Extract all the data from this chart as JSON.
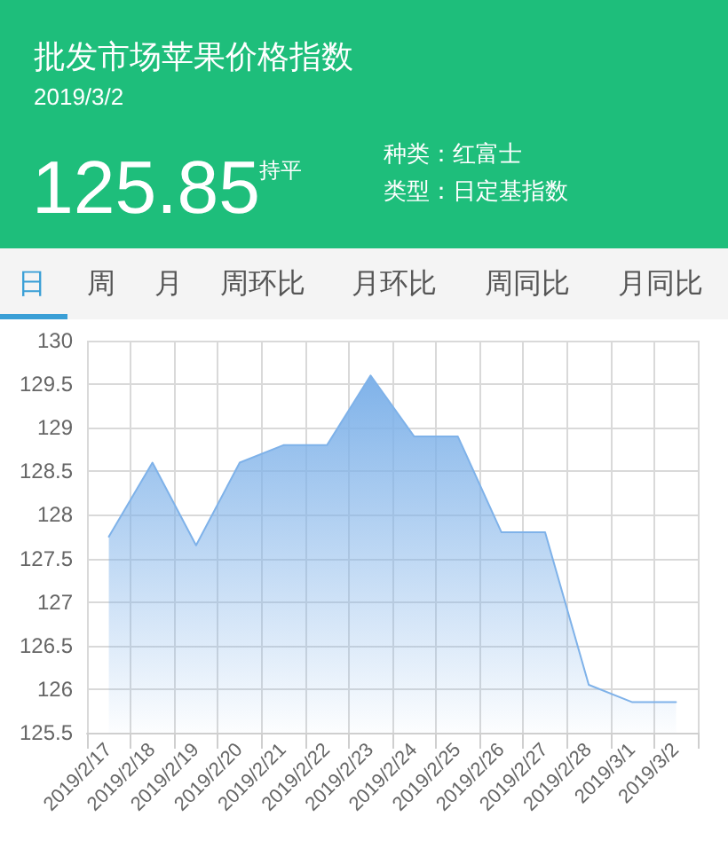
{
  "chart_data": {
    "type": "area",
    "title": "批发市场苹果价格指数",
    "subtitle": "2019/3/2",
    "annotations": [
      "125.85",
      "持平",
      "种类：红富士",
      "类型：日定基指数",
      "日",
      "周",
      "月",
      "周环比",
      "月环比",
      "周同比",
      "月同比"
    ],
    "categories": [
      "2019/2/17",
      "2019/2/18",
      "2019/2/19",
      "2019/2/20",
      "2019/2/21",
      "2019/2/22",
      "2019/2/23",
      "2019/2/24",
      "2019/2/25",
      "2019/2/26",
      "2019/2/27",
      "2019/2/28",
      "2019/3/1",
      "2019/3/2"
    ],
    "series": [
      {
        "color": "#7fb2e9",
        "values": [
          127.75,
          128.6,
          127.65,
          128.6,
          128.8,
          128.8,
          129.6,
          128.9,
          128.9,
          127.8,
          127.8,
          126.05,
          125.85,
          125.85
        ]
      }
    ],
    "ylim": [
      125.5,
      130
    ],
    "yticks": [
      125.5,
      126,
      126.5,
      127,
      127.5,
      128,
      128.5,
      129,
      129.5,
      130
    ],
    "grid": true,
    "marker": "none",
    "line_style": "solid"
  }
}
